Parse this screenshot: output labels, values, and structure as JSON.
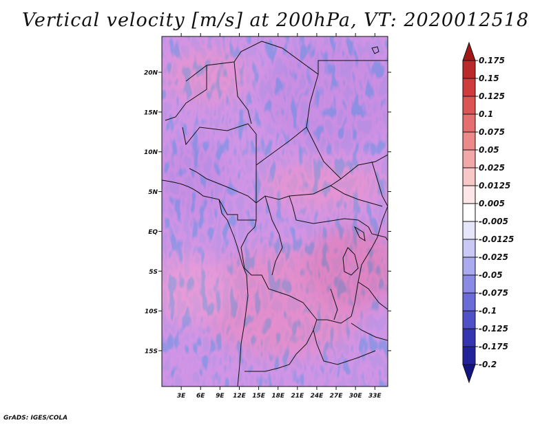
{
  "title": "Vertical velocity [m/s] at 200hPa, VT: 2020012518",
  "credit": "GrADS: IGES/COLA",
  "map": {
    "variable": "Vertical velocity",
    "units": "m/s",
    "level": "200hPa",
    "valid_time": "2020012518",
    "lat_labels": [
      "20N",
      "15N",
      "10N",
      "5N",
      "EQ",
      "5S",
      "10S",
      "15S"
    ],
    "lat_values": [
      20,
      15,
      10,
      5,
      0,
      -5,
      -10,
      -15
    ],
    "lon_labels": [
      "3E",
      "6E",
      "9E",
      "12E",
      "15E",
      "18E",
      "21E",
      "24E",
      "27E",
      "30E",
      "33E"
    ],
    "lon_values": [
      3,
      6,
      9,
      12,
      15,
      18,
      21,
      24,
      27,
      30,
      33
    ],
    "lat_range": [
      -19.5,
      24.5
    ],
    "lon_range": [
      0,
      35
    ]
  },
  "colorbar": {
    "labels": [
      "0.175",
      "0.15",
      "0.125",
      "0.1",
      "0.075",
      "0.05",
      "0.025",
      "0.0125",
      "0.005",
      "-0.005",
      "-0.0125",
      "-0.025",
      "-0.05",
      "-0.075",
      "-0.1",
      "-0.125",
      "-0.175",
      "-0.2"
    ],
    "colors": [
      "#a01818",
      "#bb2a2a",
      "#cf3c3c",
      "#dc5555",
      "#e56f6f",
      "#ec8a8a",
      "#f2a8a8",
      "#f8c8c8",
      "#fde6e6",
      "#ffffff",
      "#e6e6fb",
      "#c9c9f5",
      "#aaaaee",
      "#8a8ae4",
      "#6c6cd8",
      "#5050c8",
      "#3535b2",
      "#22229a",
      "#141480"
    ]
  }
}
